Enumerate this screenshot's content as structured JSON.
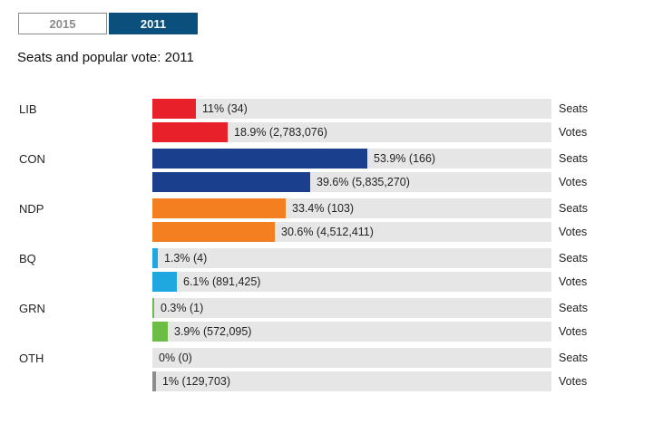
{
  "tabs": [
    {
      "label": "2015",
      "active": false
    },
    {
      "label": "2011",
      "active": true
    }
  ],
  "chart_data": {
    "type": "bar",
    "title": "Seats and popular vote: 2011",
    "xlim": [
      0,
      100
    ],
    "row_labels": {
      "seats": "Seats",
      "votes": "Votes"
    },
    "parties": [
      {
        "name": "LIB",
        "color": "#e8202a",
        "seats": {
          "value": 11,
          "label": "11% (34)"
        },
        "votes": {
          "value": 18.9,
          "label": "18.9% (2,783,076)"
        }
      },
      {
        "name": "CON",
        "color": "#1a3f8c",
        "seats": {
          "value": 53.9,
          "label": "53.9% (166)"
        },
        "votes": {
          "value": 39.6,
          "label": "39.6% (5,835,270)"
        }
      },
      {
        "name": "NDP",
        "color": "#f47f20",
        "seats": {
          "value": 33.4,
          "label": "33.4% (103)"
        },
        "votes": {
          "value": 30.6,
          "label": "30.6% (4,512,411)"
        }
      },
      {
        "name": "BQ",
        "color": "#1fa8df",
        "seats": {
          "value": 1.3,
          "label": "1.3% (4)"
        },
        "votes": {
          "value": 6.1,
          "label": "6.1% (891,425)"
        }
      },
      {
        "name": "GRN",
        "color": "#6cbd45",
        "seats": {
          "value": 0.3,
          "label": "0.3% (1)"
        },
        "votes": {
          "value": 3.9,
          "label": "3.9% (572,095)"
        }
      },
      {
        "name": "OTH",
        "color": "#8c8c8c",
        "seats": {
          "value": 0,
          "label": "0% (0)"
        },
        "votes": {
          "value": 1,
          "label": "1% (129,703)"
        }
      }
    ]
  }
}
